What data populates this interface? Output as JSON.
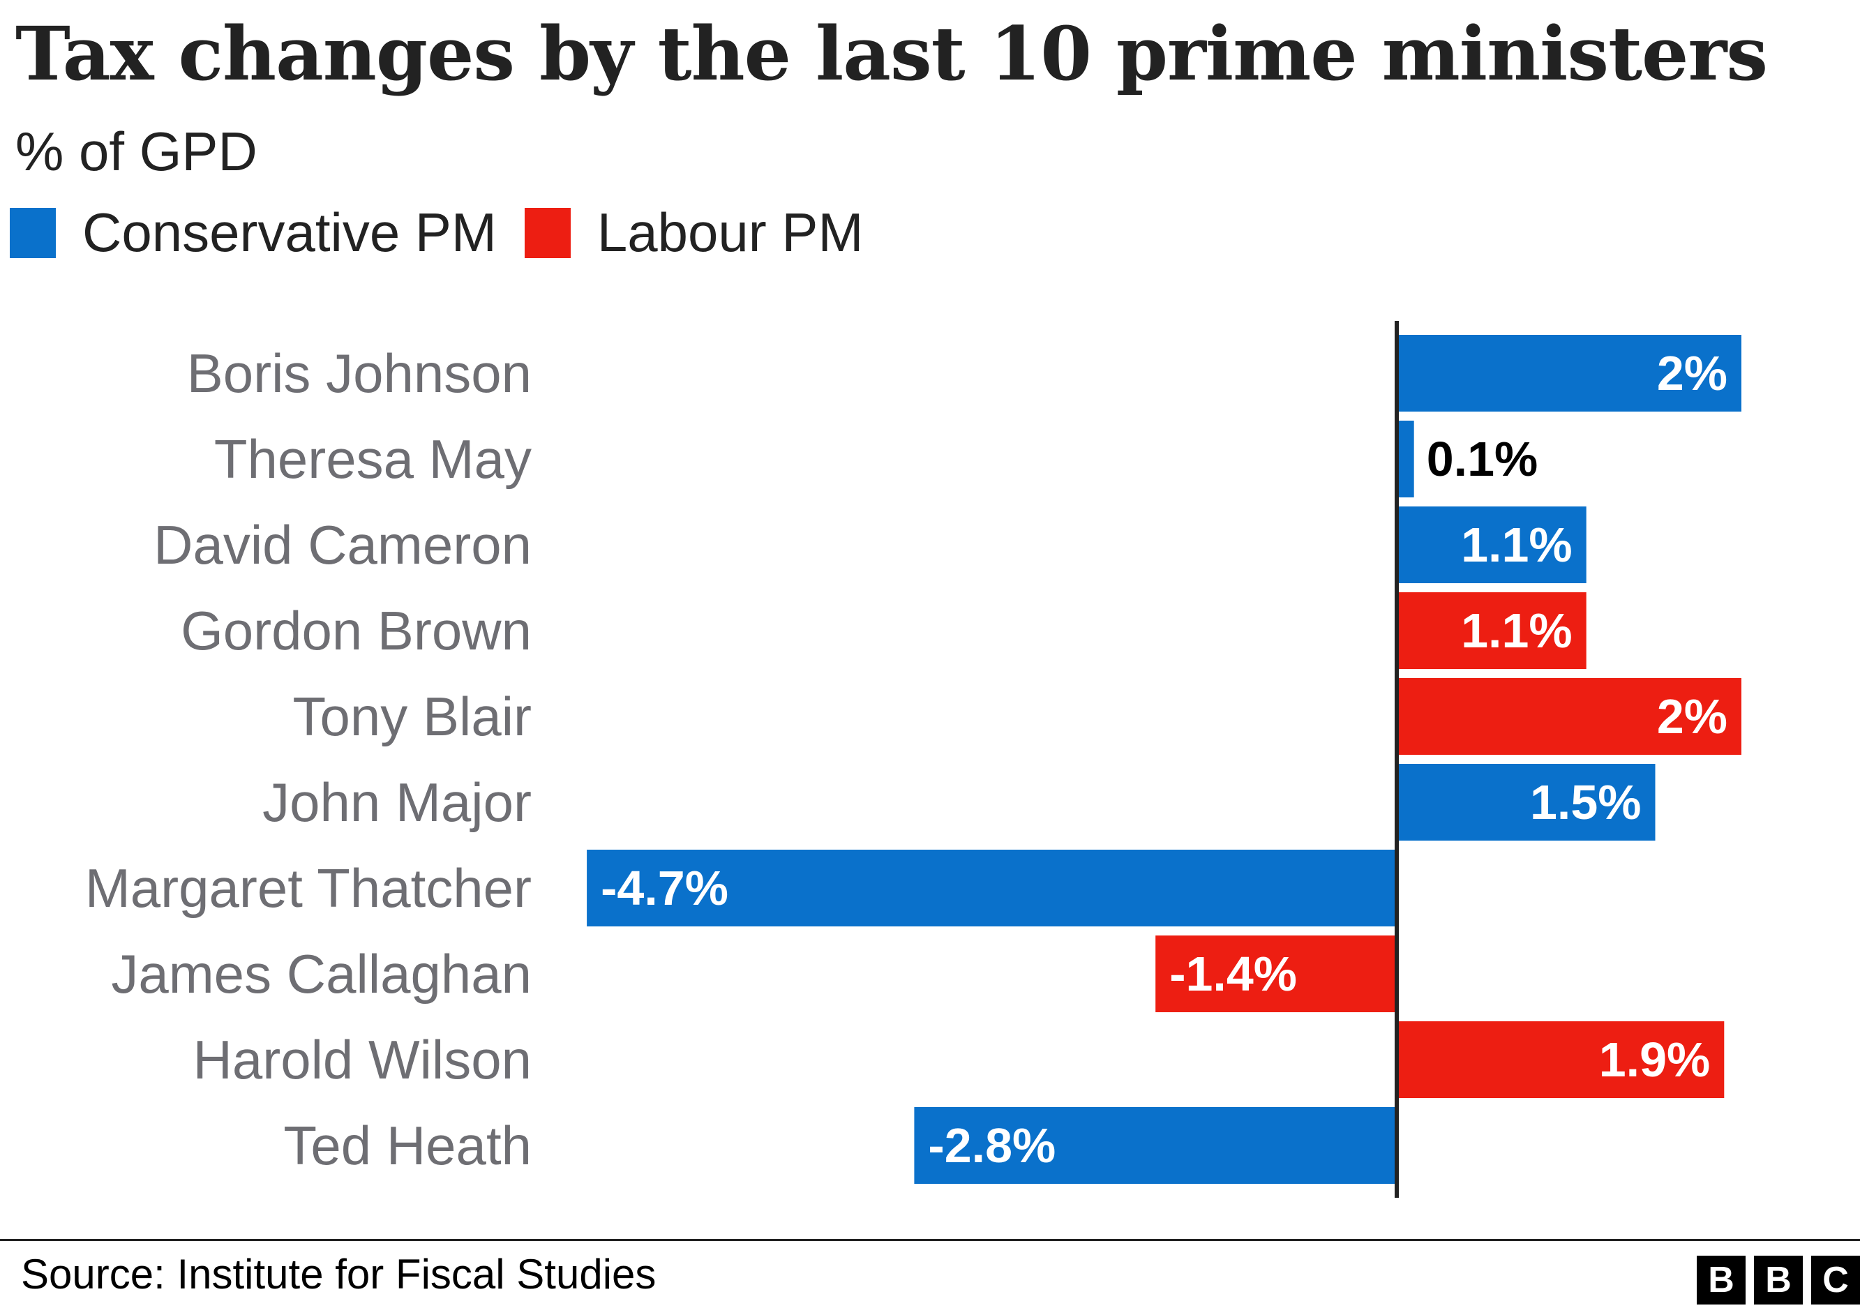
{
  "chart_data": {
    "type": "bar",
    "orientation": "horizontal",
    "title": "Tax changes by the last 10 prime ministers",
    "subtitle": "% of GPD",
    "categories": [
      "Boris Johnson",
      "Theresa May",
      "David Cameron",
      "Gordon Brown",
      "Tony Blair",
      "John Major",
      "Margaret Thatcher",
      "James Callaghan",
      "Harold Wilson",
      "Ted Heath"
    ],
    "values": [
      2,
      0.1,
      1.1,
      1.1,
      2,
      1.5,
      -4.7,
      -1.4,
      1.9,
      -2.8
    ],
    "value_labels": [
      "2%",
      "0.1%",
      "1.1%",
      "1.1%",
      "2%",
      "1.5%",
      "-4.7%",
      "-1.4%",
      "1.9%",
      "-2.8%"
    ],
    "party": [
      "Conservative",
      "Conservative",
      "Conservative",
      "Labour",
      "Labour",
      "Conservative",
      "Conservative",
      "Labour",
      "Labour",
      "Conservative"
    ],
    "xlim": [
      -5,
      3
    ],
    "legend": [
      {
        "key": "Conservative",
        "label": "Conservative PM",
        "color": "#0a71cb"
      },
      {
        "key": "Labour",
        "label": "Labour PM",
        "color": "#ed1e12"
      }
    ]
  },
  "source": "Source: Institute for Fiscal Studies",
  "logo": [
    "B",
    "B",
    "C"
  ]
}
